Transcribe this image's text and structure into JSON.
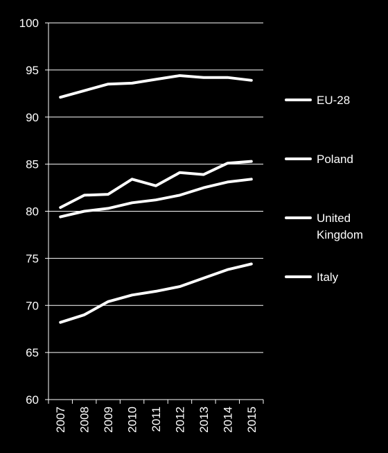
{
  "chart_data": {
    "type": "line",
    "x": [
      "2007",
      "2008",
      "2009",
      "2010",
      "2011",
      "2012",
      "2013",
      "2014",
      "2015"
    ],
    "ylim": [
      60,
      100
    ],
    "yticks": [
      "60",
      "65",
      "70",
      "75",
      "80",
      "85",
      "90",
      "95",
      "100"
    ],
    "grid": true,
    "legend_position": "right",
    "series": [
      {
        "name": "EU-28",
        "legend_lines": [
          "EU-28"
        ],
        "values": [
          92.1,
          92.8,
          93.5,
          93.6,
          94.0,
          94.4,
          94.2,
          94.2,
          93.9
        ]
      },
      {
        "name": "Poland",
        "legend_lines": [
          "Poland"
        ],
        "values": [
          80.4,
          81.7,
          81.8,
          83.4,
          82.7,
          84.1,
          83.9,
          85.1,
          85.3
        ]
      },
      {
        "name": "United Kingdom",
        "legend_lines": [
          "United",
          "Kingdom"
        ],
        "values": [
          79.4,
          80.0,
          80.3,
          80.9,
          81.2,
          81.7,
          82.5,
          83.1,
          83.4
        ]
      },
      {
        "name": "Italy",
        "legend_lines": [
          "Italy"
        ],
        "values": [
          68.2,
          69.0,
          70.4,
          71.1,
          71.5,
          72.0,
          72.9,
          73.8,
          74.4
        ]
      }
    ],
    "colors": {
      "background": "#000000",
      "line": "#ffffff",
      "grid": "#ffffff",
      "text": "#ffffff"
    }
  }
}
